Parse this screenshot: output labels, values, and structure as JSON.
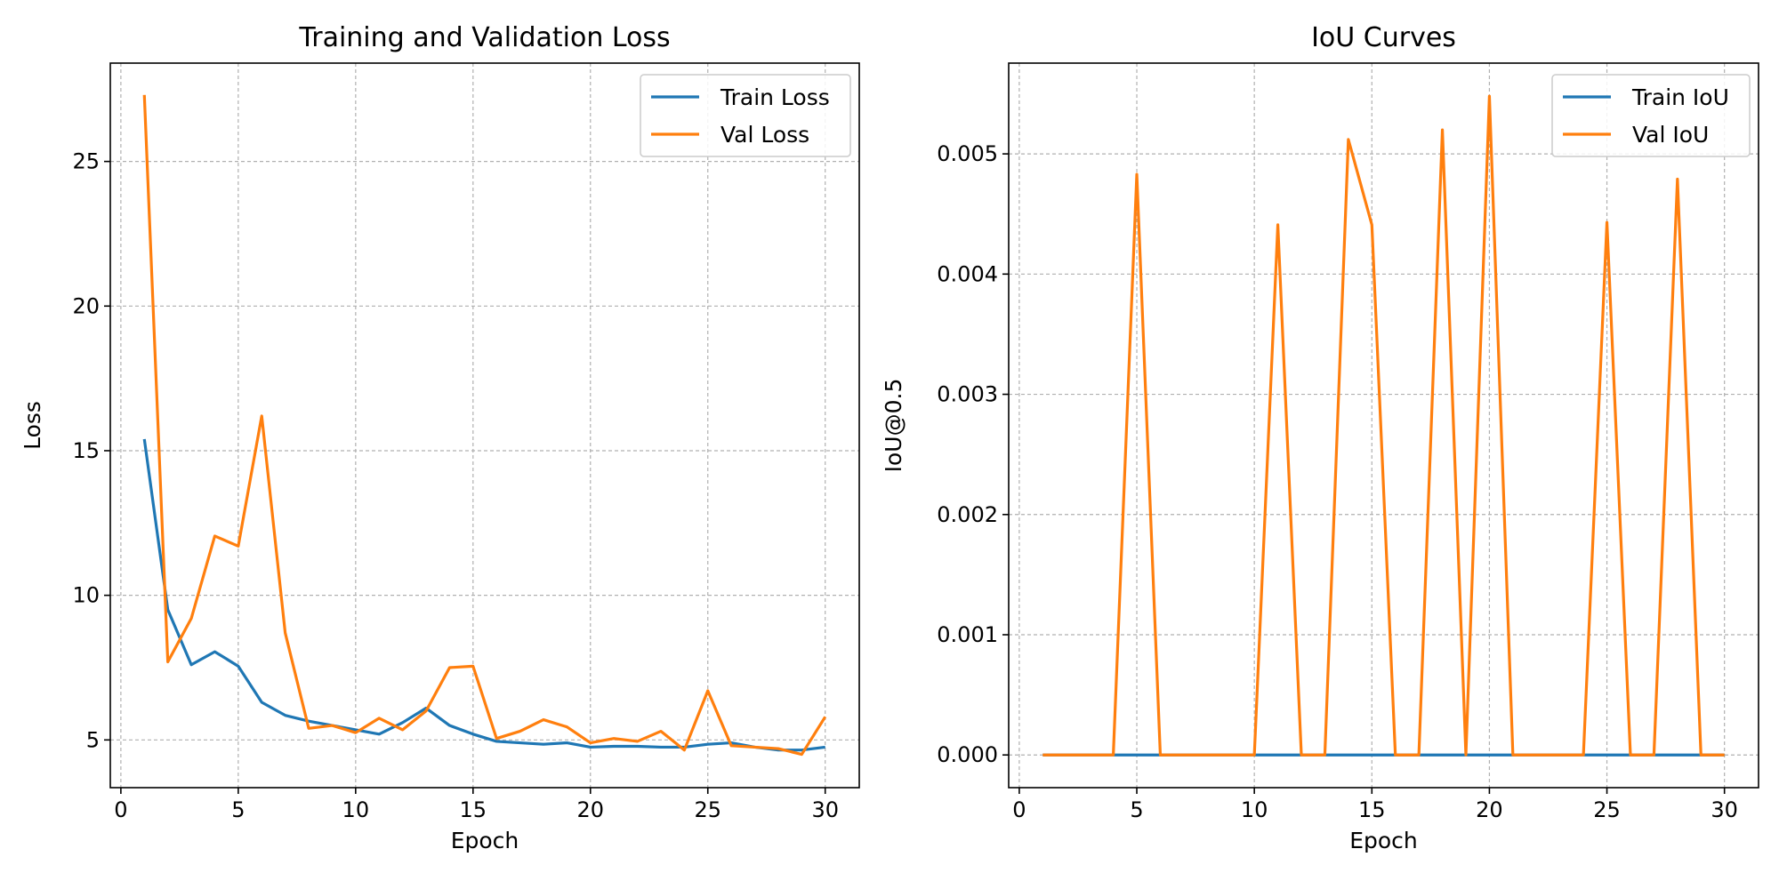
{
  "chart_data": [
    {
      "type": "line",
      "title": "Training and Validation Loss",
      "xlabel": "Epoch",
      "ylabel": "Loss",
      "xlim": [
        -0.45,
        31.45
      ],
      "ylim": [
        3.35,
        28.4
      ],
      "xticks": [
        0,
        5,
        10,
        15,
        20,
        25,
        30
      ],
      "yticks": [
        5,
        10,
        15,
        20,
        25
      ],
      "grid": true,
      "legend": "top-right",
      "x": [
        1,
        2,
        3,
        4,
        5,
        6,
        7,
        8,
        9,
        10,
        11,
        12,
        13,
        14,
        15,
        16,
        17,
        18,
        19,
        20,
        21,
        22,
        23,
        24,
        25,
        26,
        27,
        28,
        29,
        30
      ],
      "series": [
        {
          "name": "Train Loss",
          "color": "#1f77b4",
          "values": [
            15.4,
            9.5,
            7.6,
            8.05,
            7.55,
            6.3,
            5.85,
            5.65,
            5.5,
            5.35,
            5.2,
            5.6,
            6.1,
            5.5,
            5.2,
            4.95,
            4.9,
            4.85,
            4.9,
            4.75,
            4.78,
            4.78,
            4.75,
            4.75,
            4.85,
            4.9,
            4.75,
            4.65,
            4.65,
            4.75
          ]
        },
        {
          "name": "Val Loss",
          "color": "#ff7f0e",
          "values": [
            27.3,
            7.7,
            9.2,
            12.05,
            11.7,
            16.2,
            8.7,
            5.4,
            5.5,
            5.25,
            5.75,
            5.35,
            6.0,
            7.5,
            7.55,
            5.05,
            5.3,
            5.7,
            5.45,
            4.9,
            5.05,
            4.95,
            5.3,
            4.65,
            6.7,
            4.8,
            4.75,
            4.7,
            4.5,
            5.8
          ]
        }
      ]
    },
    {
      "type": "line",
      "title": "IoU Curves",
      "xlabel": "Epoch",
      "ylabel": "IoU@0.5",
      "xlim": [
        -0.45,
        31.45
      ],
      "ylim": [
        -0.000272,
        0.005755
      ],
      "xticks": [
        0,
        5,
        10,
        15,
        20,
        25,
        30
      ],
      "yticks": [
        0.0,
        0.001,
        0.002,
        0.003,
        0.004,
        0.005
      ],
      "ytick_labels": [
        "0.000",
        "0.001",
        "0.002",
        "0.003",
        "0.004",
        "0.005"
      ],
      "grid": true,
      "legend": "top-right",
      "x": [
        1,
        2,
        3,
        4,
        5,
        6,
        7,
        8,
        9,
        10,
        11,
        12,
        13,
        14,
        15,
        16,
        17,
        18,
        19,
        20,
        21,
        22,
        23,
        24,
        25,
        26,
        27,
        28,
        29,
        30
      ],
      "series": [
        {
          "name": "Train IoU",
          "color": "#1f77b4",
          "values": [
            0,
            0,
            0,
            0,
            0,
            0,
            0,
            0,
            0,
            0,
            0,
            0,
            0,
            0,
            0,
            0,
            0,
            0,
            0,
            0,
            0,
            0,
            0,
            0,
            0,
            0,
            0,
            0,
            0,
            0
          ]
        },
        {
          "name": "Val IoU",
          "color": "#ff7f0e",
          "values": [
            0,
            0,
            0,
            0,
            0.00483,
            0,
            0,
            0,
            0,
            0,
            0.00441,
            0,
            0,
            0.00512,
            0.00441,
            0,
            0,
            0.0052,
            0,
            0.00548,
            0,
            0,
            0,
            0,
            0.00443,
            0,
            0,
            0.00479,
            0,
            0
          ]
        }
      ]
    }
  ]
}
